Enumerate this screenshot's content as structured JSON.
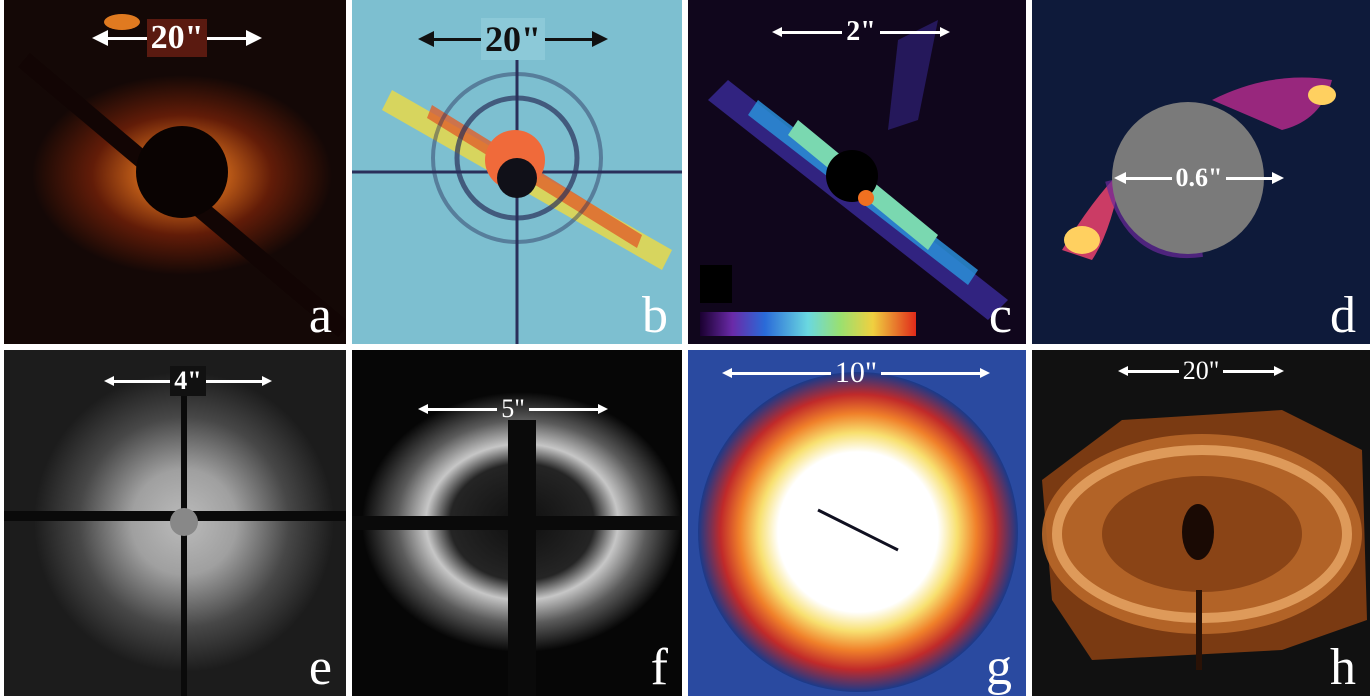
{
  "panels": [
    {
      "id": "a",
      "letter": "a",
      "scale": "20\""
    },
    {
      "id": "b",
      "letter": "b",
      "scale": "20\""
    },
    {
      "id": "c",
      "letter": "c",
      "scale": "2\""
    },
    {
      "id": "d",
      "letter": "d",
      "scale": "0.6\""
    },
    {
      "id": "e",
      "letter": "e",
      "scale": "4\""
    },
    {
      "id": "f",
      "letter": "f",
      "scale": "5\""
    },
    {
      "id": "g",
      "letter": "g",
      "scale": "10\""
    },
    {
      "id": "h",
      "letter": "h",
      "scale": "20\""
    }
  ],
  "colors": {
    "panel_a": "#140806",
    "panel_b": "#6fb3c9",
    "panel_c": "#10061c",
    "panel_d": "#0e1a3a",
    "panel_e": "#1c1c1c",
    "panel_f": "#060606",
    "panel_g": "#1a3a8a",
    "panel_h": "#111111"
  }
}
